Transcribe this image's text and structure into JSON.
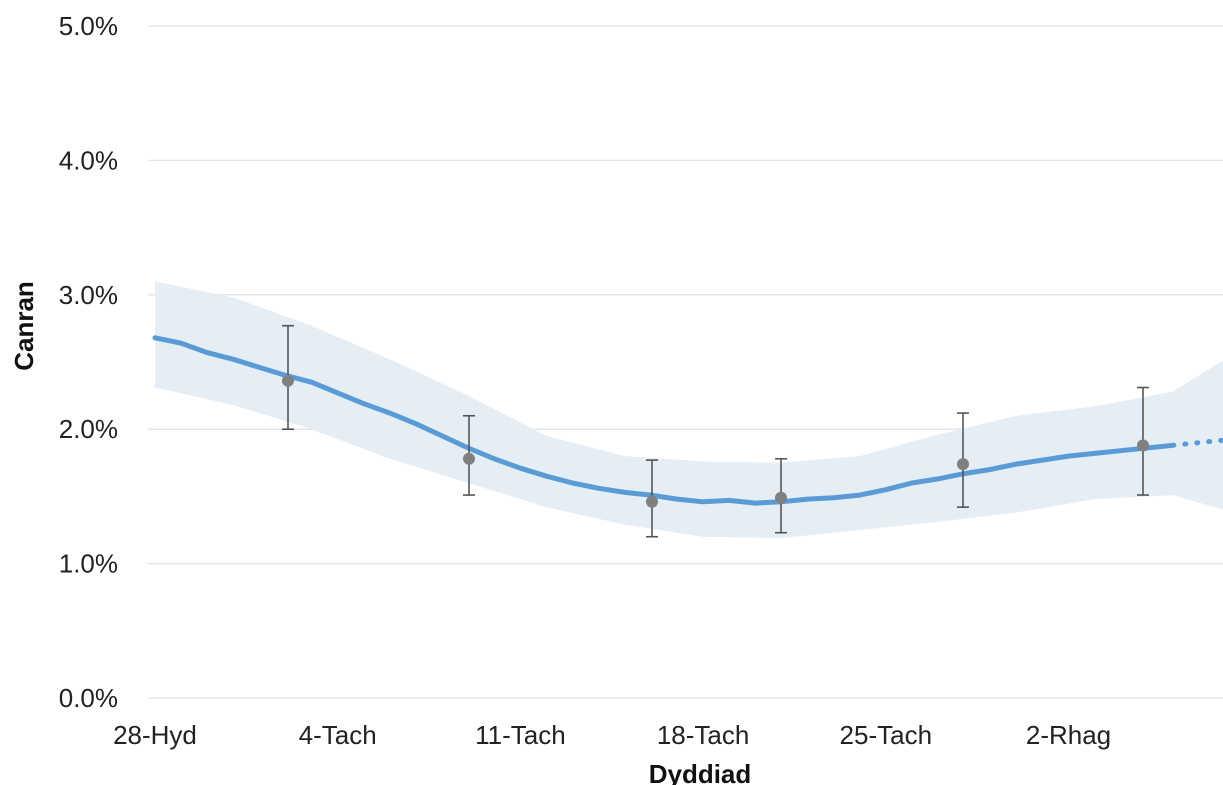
{
  "chart_data": {
    "type": "line",
    "title": "",
    "xlabel": "Dyddiad",
    "ylabel": "Canran",
    "x_ticks": [
      "28-Hyd",
      "4-Tach",
      "11-Tach",
      "18-Tach",
      "25-Tach",
      "2-Rhag"
    ],
    "y_ticks": [
      "0.0%",
      "1.0%",
      "2.0%",
      "3.0%",
      "4.0%",
      "5.0%"
    ],
    "ylim": [
      0,
      5
    ],
    "xlim_days": [
      0,
      41.5
    ],
    "grid": true,
    "colors": {
      "line": "#5b9bd5",
      "band": "#e5edf5",
      "marker": "#808080",
      "error_bar": "#555555",
      "grid": "#e3e3e3"
    },
    "series": [
      {
        "values": [
          {
            "x": 0,
            "y": 2.68
          },
          {
            "x": 1,
            "y": 2.64
          },
          {
            "x": 2,
            "y": 2.57
          },
          {
            "x": 3,
            "y": 2.52
          },
          {
            "x": 4,
            "y": 2.46
          },
          {
            "x": 5,
            "y": 2.4
          },
          {
            "x": 6,
            "y": 2.35
          },
          {
            "x": 7,
            "y": 2.27
          },
          {
            "x": 8,
            "y": 2.19
          },
          {
            "x": 9,
            "y": 2.12
          },
          {
            "x": 10,
            "y": 2.04
          },
          {
            "x": 11,
            "y": 1.95
          },
          {
            "x": 12,
            "y": 1.86
          },
          {
            "x": 13,
            "y": 1.78
          },
          {
            "x": 14,
            "y": 1.71
          },
          {
            "x": 15,
            "y": 1.65
          },
          {
            "x": 16,
            "y": 1.6
          },
          {
            "x": 17,
            "y": 1.56
          },
          {
            "x": 18,
            "y": 1.53
          },
          {
            "x": 19,
            "y": 1.51
          },
          {
            "x": 20,
            "y": 1.48
          },
          {
            "x": 21,
            "y": 1.46
          },
          {
            "x": 22,
            "y": 1.47
          },
          {
            "x": 23,
            "y": 1.45
          },
          {
            "x": 24,
            "y": 1.46
          },
          {
            "x": 25,
            "y": 1.48
          },
          {
            "x": 26,
            "y": 1.49
          },
          {
            "x": 27,
            "y": 1.51
          },
          {
            "x": 28,
            "y": 1.55
          },
          {
            "x": 29,
            "y": 1.6
          },
          {
            "x": 30,
            "y": 1.63
          },
          {
            "x": 31,
            "y": 1.67
          },
          {
            "x": 32,
            "y": 1.7
          },
          {
            "x": 33,
            "y": 1.74
          },
          {
            "x": 34,
            "y": 1.77
          },
          {
            "x": 35,
            "y": 1.8
          },
          {
            "x": 36,
            "y": 1.82
          },
          {
            "x": 37,
            "y": 1.84
          },
          {
            "x": 38,
            "y": 1.86
          },
          {
            "x": 39,
            "y": 1.88
          }
        ],
        "projected": [
          {
            "x": 39,
            "y": 1.88
          },
          {
            "x": 40,
            "y": 1.9
          },
          {
            "x": 41,
            "y": 1.92
          },
          {
            "x": 41.5,
            "y": 1.93
          }
        ]
      }
    ],
    "confidence_band": [
      {
        "x": 0,
        "low": 2.31,
        "high": 3.1
      },
      {
        "x": 3,
        "low": 2.18,
        "high": 2.98
      },
      {
        "x": 6,
        "low": 2.0,
        "high": 2.77
      },
      {
        "x": 9,
        "low": 1.78,
        "high": 2.52
      },
      {
        "x": 12,
        "low": 1.6,
        "high": 2.25
      },
      {
        "x": 15,
        "low": 1.42,
        "high": 1.95
      },
      {
        "x": 18,
        "low": 1.29,
        "high": 1.8
      },
      {
        "x": 21,
        "low": 1.2,
        "high": 1.76
      },
      {
        "x": 24,
        "low": 1.19,
        "high": 1.75
      },
      {
        "x": 27,
        "low": 1.25,
        "high": 1.8
      },
      {
        "x": 30,
        "low": 1.31,
        "high": 1.96
      },
      {
        "x": 33,
        "low": 1.38,
        "high": 2.1
      },
      {
        "x": 36,
        "low": 1.48,
        "high": 2.17
      },
      {
        "x": 39,
        "low": 1.51,
        "high": 2.28
      },
      {
        "x": 41.5,
        "low": 1.37,
        "high": 2.58
      }
    ],
    "error_points": [
      {
        "x": 6,
        "y": 2.36,
        "low": 2.0,
        "high": 2.77
      },
      {
        "x": 14,
        "y": 1.78,
        "low": 1.51,
        "high": 2.1
      },
      {
        "x": 22,
        "y": 1.46,
        "low": 1.2,
        "high": 1.77
      },
      {
        "x": 28,
        "y": 1.49,
        "low": 1.23,
        "high": 1.78
      },
      {
        "x": 36,
        "y": 1.74,
        "low": 1.42,
        "high": 2.12
      },
      {
        "x": 43,
        "y": 1.88,
        "low": 1.51,
        "high": 2.31
      }
    ]
  }
}
